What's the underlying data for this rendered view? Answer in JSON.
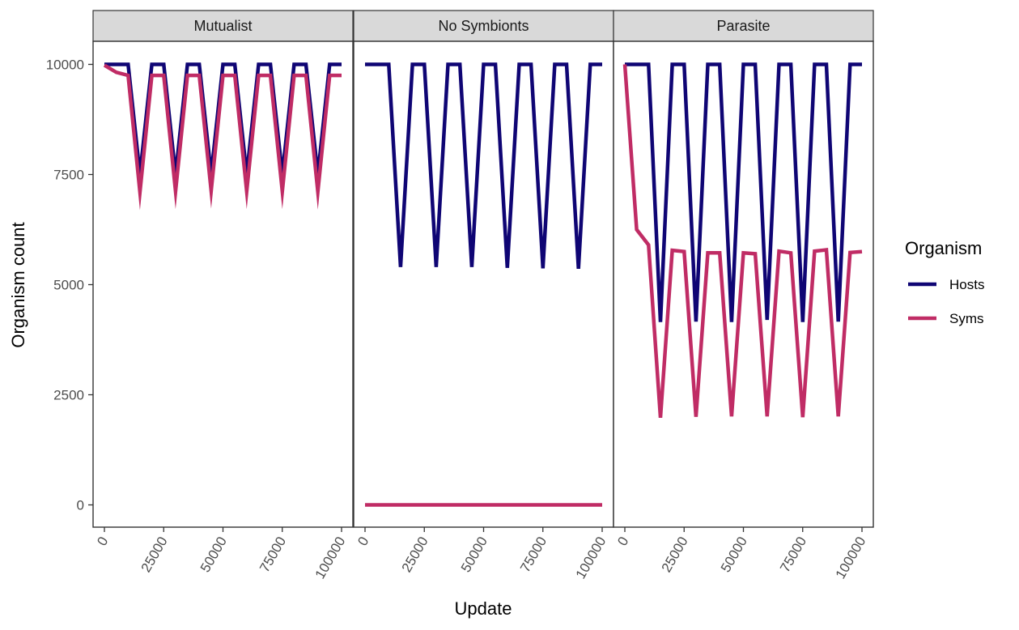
{
  "chart_data": {
    "type": "line",
    "facet_by": "Treatment",
    "panels": [
      "Mutualist",
      "No Symbionts",
      "Parasite"
    ],
    "xlabel": "Update",
    "ylabel": "Organism count",
    "xlim": [
      0,
      100000
    ],
    "ylim": [
      0,
      10000
    ],
    "x_ticks": [
      0,
      25000,
      50000,
      75000,
      100000
    ],
    "y_ticks": [
      0,
      2500,
      5000,
      7500,
      10000
    ],
    "grid": false,
    "legend": {
      "title": "Organism",
      "position": "right",
      "entries": [
        {
          "name": "Hosts",
          "color": "#0f0574"
        },
        {
          "name": "Syms",
          "color": "#c02c65"
        }
      ]
    },
    "x": [
      0,
      5000,
      10000,
      15000,
      20000,
      25000,
      30000,
      35000,
      40000,
      45000,
      50000,
      55000,
      60000,
      65000,
      70000,
      75000,
      80000,
      85000,
      90000,
      95000,
      100000
    ],
    "series": [
      {
        "panel": "Mutualist",
        "name": "Hosts",
        "color": "#0f0574",
        "values": [
          10000,
          10000,
          10000,
          7500,
          10000,
          10000,
          7500,
          10000,
          10000,
          7500,
          10000,
          10000,
          7500,
          10000,
          10000,
          7500,
          10000,
          10000,
          7500,
          10000,
          10000
        ]
      },
      {
        "panel": "Mutualist",
        "name": "Syms",
        "color": "#c02c65",
        "values": [
          9980,
          9820,
          9750,
          7100,
          9750,
          9750,
          7120,
          9750,
          9750,
          7130,
          9750,
          9750,
          7120,
          9750,
          9750,
          7120,
          9750,
          9750,
          7110,
          9750,
          9750
        ]
      },
      {
        "panel": "No Symbionts",
        "name": "Hosts",
        "color": "#0f0574",
        "values": [
          10000,
          10000,
          10000,
          5400,
          10000,
          10000,
          5400,
          10000,
          10000,
          5400,
          10000,
          10000,
          5380,
          10000,
          10000,
          5370,
          10000,
          10000,
          5360,
          10000,
          10000
        ]
      },
      {
        "panel": "No Symbionts",
        "name": "Syms",
        "color": "#c02c65",
        "values": [
          0,
          0,
          0,
          0,
          0,
          0,
          0,
          0,
          0,
          0,
          0,
          0,
          0,
          0,
          0,
          0,
          0,
          0,
          0,
          0,
          0
        ]
      },
      {
        "panel": "Parasite",
        "name": "Hosts",
        "color": "#0f0574",
        "values": [
          10000,
          10000,
          10000,
          4150,
          10000,
          10000,
          4160,
          10000,
          10000,
          4150,
          10000,
          10000,
          4200,
          10000,
          10000,
          4150,
          10000,
          10000,
          4160,
          10000,
          10000
        ]
      },
      {
        "panel": "Parasite",
        "name": "Syms",
        "color": "#c02c65",
        "values": [
          10000,
          6250,
          5900,
          1980,
          5780,
          5750,
          2000,
          5720,
          5720,
          2010,
          5720,
          5700,
          2010,
          5760,
          5720,
          1990,
          5760,
          5790,
          2010,
          5730,
          5750
        ]
      }
    ]
  }
}
